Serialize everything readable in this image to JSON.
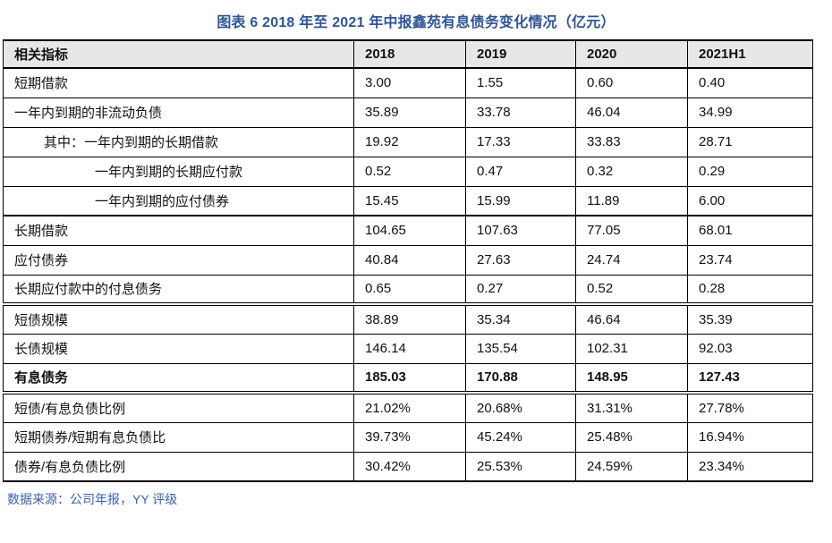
{
  "title": "图表 6 2018 年至 2021 年中报鑫苑有息债务变化情况（亿元）",
  "source_note": "数据来源：公司年报，YY 评级",
  "colors": {
    "title_blue": "#2E5596",
    "source_blue": "#3A62AD",
    "header_bg": "#E7E7E7",
    "border": "#000000"
  },
  "table": {
    "columns": [
      "相关指标",
      "2018",
      "2019",
      "2020",
      "2021H1"
    ],
    "rows": [
      {
        "label": "短期借款",
        "indent": 0,
        "bold": false,
        "values": [
          "3.00",
          "1.55",
          "0.60",
          "0.40"
        ]
      },
      {
        "label": "一年内到期的非流动负债",
        "indent": 0,
        "bold": false,
        "values": [
          "35.89",
          "33.78",
          "46.04",
          "34.99"
        ]
      },
      {
        "label": "其中：一年内到期的长期借款",
        "indent": 1,
        "bold": false,
        "values": [
          "19.92",
          "17.33",
          "33.83",
          "28.71"
        ]
      },
      {
        "label": "一年内到期的长期应付款",
        "indent": 2,
        "bold": false,
        "values": [
          "0.52",
          "0.47",
          "0.32",
          "0.29"
        ]
      },
      {
        "label": "一年内到期的应付债券",
        "indent": 2,
        "bold": false,
        "values": [
          "15.45",
          "15.99",
          "11.89",
          "6.00"
        ]
      },
      {
        "label": "长期借款",
        "indent": 0,
        "bold": false,
        "values": [
          "104.65",
          "107.63",
          "77.05",
          "68.01"
        ]
      },
      {
        "label": "应付债券",
        "indent": 0,
        "bold": false,
        "values": [
          "40.84",
          "27.63",
          "24.74",
          "23.74"
        ]
      },
      {
        "label": "长期应付款中的付息债务",
        "indent": 0,
        "bold": false,
        "values": [
          "0.65",
          "0.27",
          "0.52",
          "0.28"
        ]
      },
      {
        "label": "短债规模",
        "indent": 0,
        "bold": false,
        "values": [
          "38.89",
          "35.34",
          "46.64",
          "35.39"
        ]
      },
      {
        "label": "长债规模",
        "indent": 0,
        "bold": false,
        "values": [
          "146.14",
          "135.54",
          "102.31",
          "92.03"
        ]
      },
      {
        "label": "有息债务",
        "indent": 0,
        "bold": true,
        "values": [
          "185.03",
          "170.88",
          "148.95",
          "127.43"
        ]
      },
      {
        "label": "短债/有息负债比例",
        "indent": 0,
        "bold": false,
        "values": [
          "21.02%",
          "20.68%",
          "31.31%",
          "27.78%"
        ]
      },
      {
        "label": "短期债券/短期有息负债比",
        "indent": 0,
        "bold": false,
        "values": [
          "39.73%",
          "45.24%",
          "25.48%",
          "16.94%"
        ]
      },
      {
        "label": "债券/有息负债比例",
        "indent": 0,
        "bold": false,
        "values": [
          "30.42%",
          "25.53%",
          "24.59%",
          "23.34%"
        ]
      }
    ]
  }
}
